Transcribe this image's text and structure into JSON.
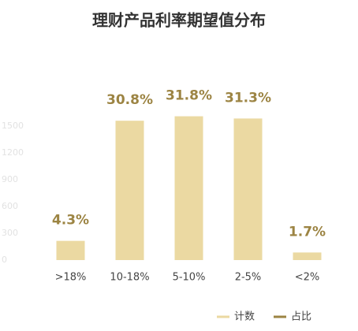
{
  "chart_data": {
    "type": "bar",
    "title": "理财产品利率期望值分布",
    "categories": [
      ">18%",
      "10-18%",
      "5-10%",
      "2-5%",
      "<2%"
    ],
    "series": [
      {
        "name": "计数",
        "color": "#ebd9a2",
        "values": [
          215,
          1560,
          1610,
          1585,
          85
        ]
      },
      {
        "name": "占比",
        "color": "#9c8443",
        "values": [
          4.3,
          30.8,
          31.8,
          31.3,
          1.7
        ],
        "value_labels": [
          "4.3%",
          "30.8%",
          "31.8%",
          "31.3%",
          "1.7%"
        ]
      }
    ],
    "ylim": [
      0,
      1800
    ],
    "yticks": [
      0,
      300,
      600,
      900,
      1200,
      1500
    ],
    "grid": false
  }
}
